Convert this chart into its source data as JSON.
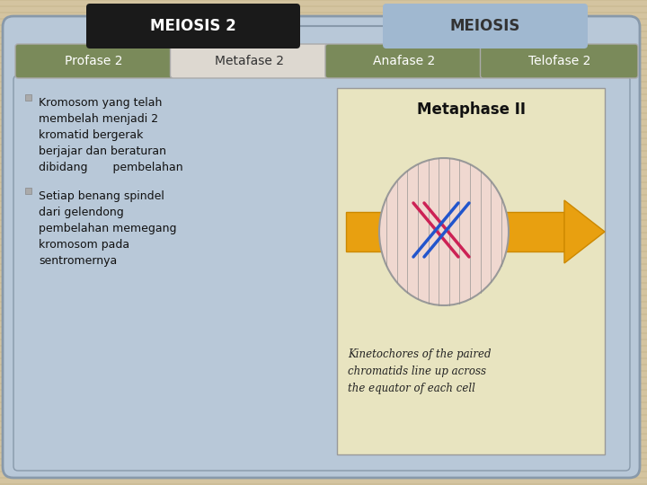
{
  "background_color": "#d4c4a0",
  "background_stripe_color": "#c8b890",
  "main_panel_color": "#b8c8d8",
  "main_panel_border": "#8899aa",
  "title_box1_text": "MEIOSIS 2",
  "title_box1_bg": "#1a1a1a",
  "title_box1_fg": "#ffffff",
  "title_box2_text": "MEIOSIS",
  "title_box2_bg": "#a0b8d0",
  "title_box2_fg": "#333333",
  "tabs": [
    "Profase 2",
    "Metafase 2",
    "Anafase 2",
    "Telofase 2"
  ],
  "tab_colors": [
    "#7a8a5a",
    "#ddd8d0",
    "#7a8a5a",
    "#7a8a5a"
  ],
  "tab_text_colors": [
    "#ffffff",
    "#333333",
    "#ffffff",
    "#ffffff"
  ],
  "bullet1_lines": [
    "Kromosom yang telah",
    "membelah menjadi 2",
    "kromatid bergerak",
    "berjajar dan beraturan",
    "dibidang       pembelahan"
  ],
  "bullet2_lines": [
    "Setiap benang spindel",
    "dari gelendong",
    "pembelahan memegang",
    "kromosom pada",
    "sentromernya"
  ],
  "content_bg": "#b8c8d8",
  "image_bg": "#e8e4c0",
  "image_title": "Metaphase II",
  "image_caption": "Kinetochores of the paired\nchromatids line up across\nthe equator of each cell",
  "arrow_color": "#e8a010",
  "arrow_edge_color": "#cc8800",
  "cell_color": "#f0d8d0",
  "cell_border": "#999999",
  "chrom_pink": "#cc2255",
  "chrom_blue": "#2255cc"
}
